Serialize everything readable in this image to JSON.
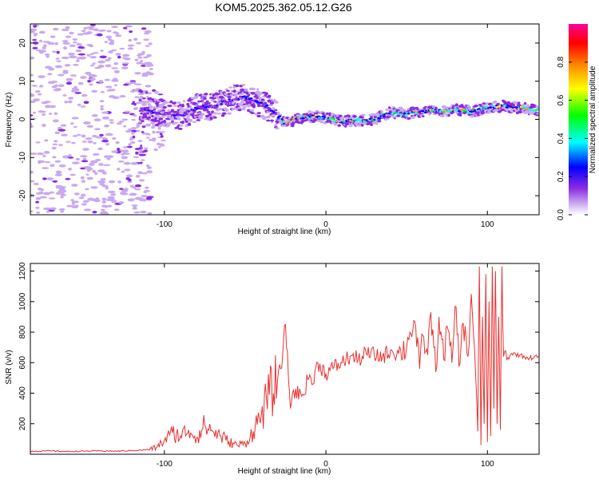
{
  "title": "KOM5.2025.362.05.12.G26",
  "chart_data": [
    {
      "type": "heatmap",
      "xlabel": "Height of straight line (km)",
      "ylabel": "Frequency (Hz)",
      "xlim": [
        -183,
        132
      ],
      "ylim": [
        -25,
        25
      ],
      "xticks": [
        -100,
        0,
        100
      ],
      "xtick_labels": [
        "-100",
        "0",
        "100"
      ],
      "yticks": [
        -20,
        -10,
        0,
        10,
        20
      ],
      "ytick_labels": [
        "-20",
        "-10",
        "0",
        "10",
        "20"
      ],
      "ridge": [
        [
          -115,
          2.5
        ],
        [
          -100,
          1.5
        ],
        [
          -90,
          1
        ],
        [
          -80,
          3
        ],
        [
          -70,
          3.5
        ],
        [
          -60,
          5
        ],
        [
          -50,
          6
        ],
        [
          -45,
          5
        ],
        [
          -35,
          3
        ],
        [
          -25,
          -1
        ],
        [
          -15,
          0.5
        ],
        [
          -5,
          0.8
        ],
        [
          10,
          -0.5
        ],
        [
          20,
          -0.3
        ],
        [
          30,
          0
        ],
        [
          40,
          1.8
        ],
        [
          50,
          1.5
        ],
        [
          60,
          2
        ],
        [
          70,
          2.2
        ],
        [
          80,
          2.5
        ],
        [
          90,
          2
        ],
        [
          100,
          3
        ],
        [
          110,
          3.5
        ],
        [
          120,
          3
        ],
        [
          132,
          2.5
        ]
      ],
      "colorbar": {
        "label": "Normalized spectral amplitude",
        "range": [
          0,
          1
        ],
        "ticks": [
          0.0,
          0.2,
          0.4,
          0.6,
          0.8
        ],
        "tick_labels": [
          "0.0",
          "0.2",
          "0.4",
          "0.6",
          "0.8"
        ],
        "colors": [
          "#ffffff",
          "#c9a8f0",
          "#8a2be2",
          "#0000ff",
          "#00ffff",
          "#00ff00",
          "#ffff00",
          "#ff8c00",
          "#ff0000",
          "#ff0099"
        ]
      }
    },
    {
      "type": "line",
      "xlabel": "Height of straight line (km)",
      "ylabel": "SNR (v/v)",
      "xlim": [
        -183,
        132
      ],
      "ylim": [
        0,
        1250
      ],
      "xticks": [
        -100,
        0,
        100
      ],
      "xtick_labels": [
        "-100",
        "0",
        "100"
      ],
      "yticks": [
        200,
        400,
        600,
        800,
        1000,
        1200
      ],
      "ytick_labels": [
        "200",
        "400",
        "600",
        "800",
        "1000",
        "1200"
      ],
      "line_color": "#e8312f",
      "series": [
        {
          "name": "SNR",
          "x": [
            -183,
            -170,
            -160,
            -150,
            -140,
            -130,
            -120,
            -110,
            -105,
            -100,
            -95,
            -90,
            -85,
            -80,
            -75,
            -70,
            -65,
            -60,
            -55,
            -50,
            -45,
            -40,
            -35,
            -30,
            -28,
            -25,
            -22,
            -20,
            -15,
            -10,
            -8,
            -5,
            0,
            5,
            10,
            15,
            20,
            25,
            30,
            35,
            40,
            45,
            50,
            52,
            55,
            58,
            60,
            63,
            65,
            68,
            70,
            73,
            75,
            78,
            80,
            83,
            85,
            88,
            90,
            92,
            94,
            95,
            96,
            97,
            98,
            99,
            100,
            101,
            102,
            103,
            104,
            105,
            106,
            107,
            108,
            109,
            110,
            112,
            115,
            120,
            125,
            132
          ],
          "values": [
            20,
            22,
            18,
            20,
            22,
            20,
            24,
            30,
            45,
            90,
            140,
            120,
            160,
            110,
            190,
            150,
            120,
            80,
            60,
            70,
            150,
            260,
            390,
            480,
            560,
            850,
            300,
            420,
            380,
            520,
            460,
            600,
            530,
            570,
            600,
            640,
            620,
            660,
            650,
            640,
            680,
            660,
            700,
            800,
            870,
            560,
            780,
            650,
            930,
            540,
            900,
            620,
            840,
            600,
            970,
            590,
            860,
            640,
            1050,
            700,
            150,
            1230,
            60,
            900,
            200,
            1180,
            80,
            1000,
            120,
            1230,
            300,
            1200,
            200,
            900,
            160,
            1230,
            640,
            620,
            660,
            650,
            630,
            640
          ]
        }
      ]
    }
  ]
}
